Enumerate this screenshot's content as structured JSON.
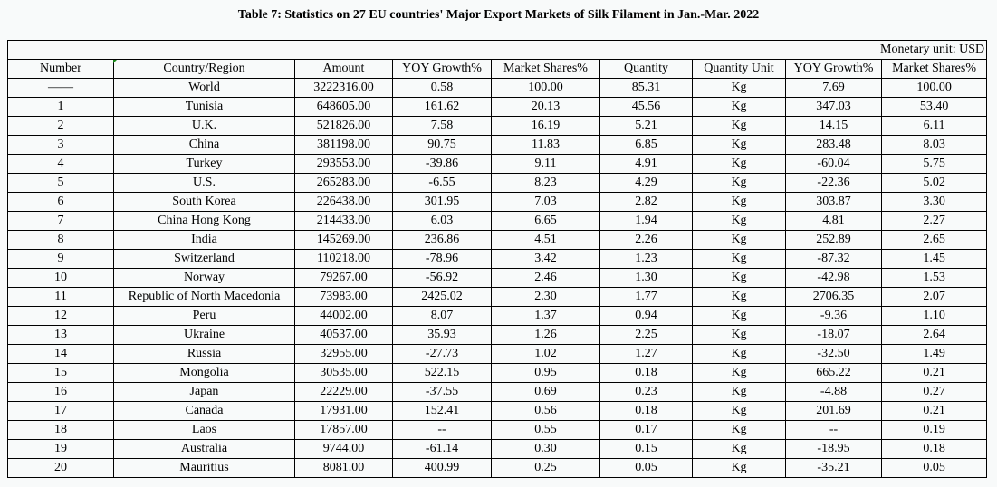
{
  "title": "Table 7: Statistics on 27 EU countries' Major Export Markets of Silk Filament in Jan.-Mar. 2022",
  "monetary_unit": "Monetary unit: USD",
  "headers": [
    "Number",
    "Country/Region",
    "Amount",
    "YOY Growth%",
    "Market Shares%",
    "Quantity",
    "Quantity Unit",
    "YOY Growth%",
    "Market Shares%"
  ],
  "rows": [
    [
      "——",
      "World",
      "3222316.00",
      "0.58",
      "100.00",
      "85.31",
      "Kg",
      "7.69",
      "100.00"
    ],
    [
      "1",
      "Tunisia",
      "648605.00",
      "161.62",
      "20.13",
      "45.56",
      "Kg",
      "347.03",
      "53.40"
    ],
    [
      "2",
      "U.K.",
      "521826.00",
      "7.58",
      "16.19",
      "5.21",
      "Kg",
      "14.15",
      "6.11"
    ],
    [
      "3",
      "China",
      "381198.00",
      "90.75",
      "11.83",
      "6.85",
      "Kg",
      "283.48",
      "8.03"
    ],
    [
      "4",
      "Turkey",
      "293553.00",
      "-39.86",
      "9.11",
      "4.91",
      "Kg",
      "-60.04",
      "5.75"
    ],
    [
      "5",
      "U.S.",
      "265283.00",
      "-6.55",
      "8.23",
      "4.29",
      "Kg",
      "-22.36",
      "5.02"
    ],
    [
      "6",
      "South Korea",
      "226438.00",
      "301.95",
      "7.03",
      "2.82",
      "Kg",
      "303.87",
      "3.30"
    ],
    [
      "7",
      "China Hong Kong",
      "214433.00",
      "6.03",
      "6.65",
      "1.94",
      "Kg",
      "4.81",
      "2.27"
    ],
    [
      "8",
      "India",
      "145269.00",
      "236.86",
      "4.51",
      "2.26",
      "Kg",
      "252.89",
      "2.65"
    ],
    [
      "9",
      "Switzerland",
      "110218.00",
      "-78.96",
      "3.42",
      "1.23",
      "Kg",
      "-87.32",
      "1.45"
    ],
    [
      "10",
      "Norway",
      "79267.00",
      "-56.92",
      "2.46",
      "1.30",
      "Kg",
      "-42.98",
      "1.53"
    ],
    [
      "11",
      "Republic of North Macedonia",
      "73983.00",
      "2425.02",
      "2.30",
      "1.77",
      "Kg",
      "2706.35",
      "2.07"
    ],
    [
      "12",
      "Peru",
      "44002.00",
      "8.07",
      "1.37",
      "0.94",
      "Kg",
      "-9.36",
      "1.10"
    ],
    [
      "13",
      "Ukraine",
      "40537.00",
      "35.93",
      "1.26",
      "2.25",
      "Kg",
      "-18.07",
      "2.64"
    ],
    [
      "14",
      "Russia",
      "32955.00",
      "-27.73",
      "1.02",
      "1.27",
      "Kg",
      "-32.50",
      "1.49"
    ],
    [
      "15",
      "Mongolia",
      "30535.00",
      "522.15",
      "0.95",
      "0.18",
      "Kg",
      "665.22",
      "0.21"
    ],
    [
      "16",
      "Japan",
      "22229.00",
      "-37.55",
      "0.69",
      "0.23",
      "Kg",
      "-4.88",
      "0.27"
    ],
    [
      "17",
      "Canada",
      "17931.00",
      "152.41",
      "0.56",
      "0.18",
      "Kg",
      "201.69",
      "0.21"
    ],
    [
      "18",
      "Laos",
      "17857.00",
      "--",
      "0.55",
      "0.17",
      "Kg",
      "--",
      "0.19"
    ],
    [
      "19",
      "Australia",
      "9744.00",
      "-61.14",
      "0.30",
      "0.15",
      "Kg",
      "-18.95",
      "0.18"
    ],
    [
      "20",
      "Mauritius",
      "8081.00",
      "400.99",
      "0.25",
      "0.05",
      "Kg",
      "-35.21",
      "0.05"
    ]
  ]
}
